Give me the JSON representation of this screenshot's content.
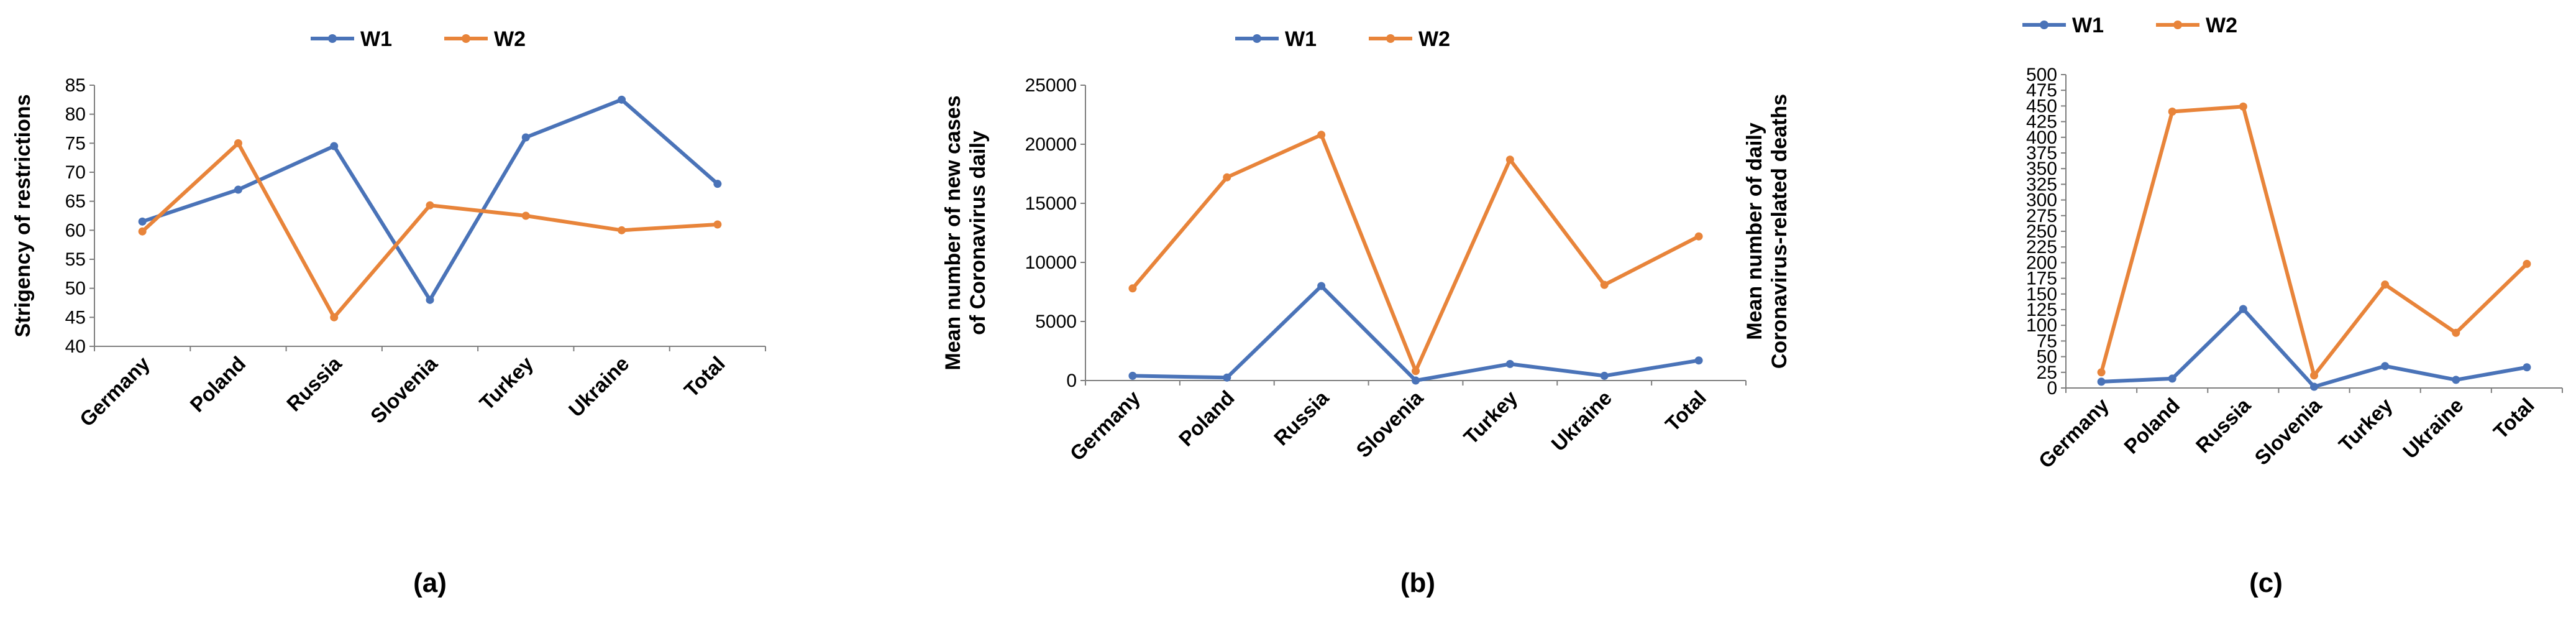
{
  "chart_data": [
    {
      "id": "a",
      "type": "line",
      "caption": "(a)",
      "title": "",
      "xlabel": "",
      "ylabel": "Strigency of restrictions",
      "categories": [
        "Germany",
        "Poland",
        "Russia",
        "Slovenia",
        "Turkey",
        "Ukraine",
        "Total"
      ],
      "ylim": [
        40,
        85
      ],
      "yticks": [
        40,
        45,
        50,
        55,
        60,
        65,
        70,
        75,
        80,
        85
      ],
      "legend_position": "top",
      "series": [
        {
          "name": "W1",
          "color": "#4a73b8",
          "values": [
            61.5,
            67,
            74.5,
            48,
            76,
            82.5,
            68
          ]
        },
        {
          "name": "W2",
          "color": "#e8843a",
          "values": [
            59.8,
            75,
            45,
            64.3,
            62.5,
            60,
            61
          ]
        }
      ]
    },
    {
      "id": "b",
      "type": "line",
      "caption": "(b)",
      "title": "",
      "xlabel": "",
      "ylabel": [
        "Mean number of new cases",
        "of Coronavirus daily"
      ],
      "categories": [
        "Germany",
        "Poland",
        "Russia",
        "Slovenia",
        "Turkey",
        "Ukraine",
        "Total"
      ],
      "ylim": [
        0,
        25000
      ],
      "yticks": [
        0,
        5000,
        10000,
        15000,
        20000,
        25000
      ],
      "legend_position": "top",
      "series": [
        {
          "name": "W1",
          "color": "#4a73b8",
          "values": [
            400,
            250,
            8000,
            0,
            1400,
            400,
            1700
          ]
        },
        {
          "name": "W2",
          "color": "#e8843a",
          "values": [
            7800,
            17200,
            20800,
            800,
            18700,
            8100,
            12200
          ]
        }
      ]
    },
    {
      "id": "c",
      "type": "line",
      "caption": "(c)",
      "title": "",
      "xlabel": "",
      "ylabel": [
        "Mean number of daily",
        "Coronavirus-related deaths"
      ],
      "categories": [
        "Germany",
        "Poland",
        "Russia",
        "Slovenia",
        "Turkey",
        "Ukraine",
        "Total"
      ],
      "ylim": [
        0,
        500
      ],
      "yticks": [
        0,
        25,
        50,
        75,
        100,
        125,
        150,
        175,
        200,
        225,
        250,
        275,
        300,
        325,
        350,
        375,
        400,
        425,
        450,
        475,
        500
      ],
      "legend_position": "top",
      "series": [
        {
          "name": "W1",
          "color": "#4a73b8",
          "values": [
            10,
            15,
            126,
            2,
            35,
            13,
            33
          ]
        },
        {
          "name": "W2",
          "color": "#e8843a",
          "values": [
            25,
            441,
            449,
            20,
            165,
            88,
            198
          ]
        }
      ]
    }
  ]
}
